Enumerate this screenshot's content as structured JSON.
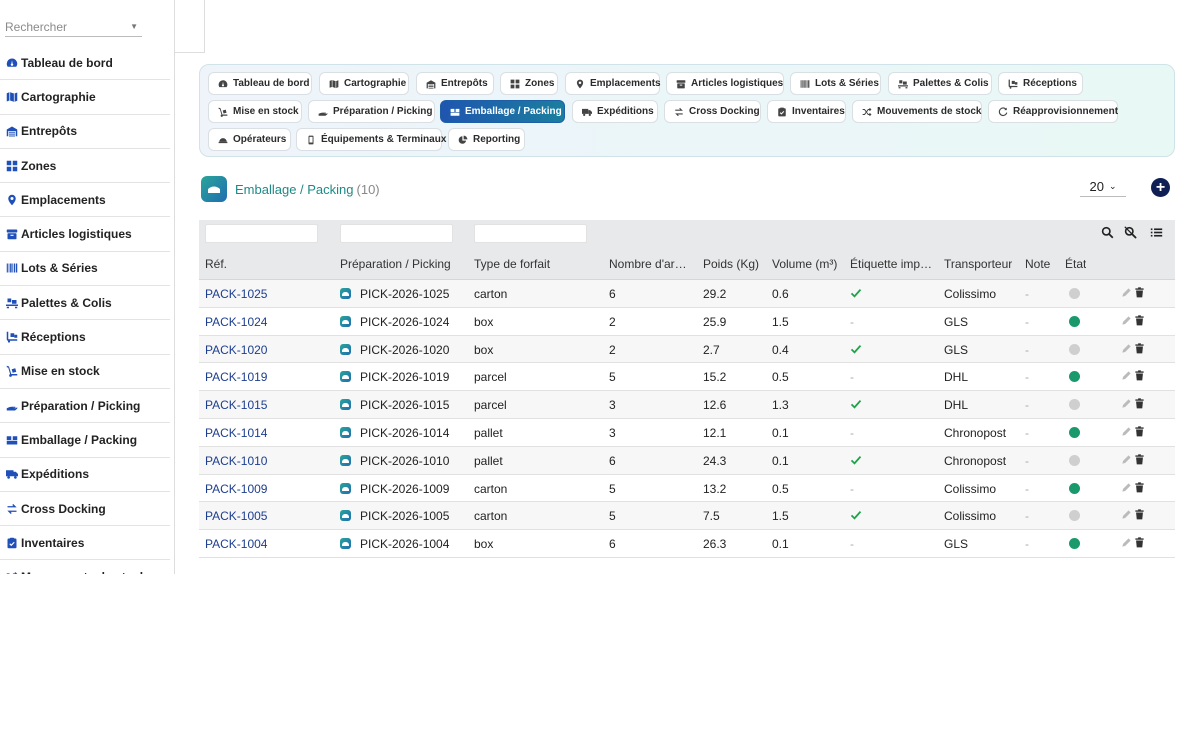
{
  "search": {
    "placeholder": "Rechercher"
  },
  "sidebar": {
    "items": [
      {
        "label": "Tableau de bord",
        "icon": "dashboard-icon"
      },
      {
        "label": "Cartographie",
        "icon": "map-icon"
      },
      {
        "label": "Entrepôts",
        "icon": "warehouse-icon"
      },
      {
        "label": "Zones",
        "icon": "grid-icon"
      },
      {
        "label": "Emplacements",
        "icon": "location-pin-icon"
      },
      {
        "label": "Articles logistiques",
        "icon": "box-icon"
      },
      {
        "label": "Lots & Séries",
        "icon": "barcode-icon"
      },
      {
        "label": "Palettes & Colis",
        "icon": "pallet-icon"
      },
      {
        "label": "Réceptions",
        "icon": "truck-loading-icon"
      },
      {
        "label": "Mise en stock",
        "icon": "dolly-icon"
      },
      {
        "label": "Préparation / Picking",
        "icon": "hand-icon"
      },
      {
        "label": "Emballage / Packing",
        "icon": "boxes-icon"
      },
      {
        "label": "Expéditions",
        "icon": "truck-icon"
      },
      {
        "label": "Cross Docking",
        "icon": "exchange-icon"
      },
      {
        "label": "Inventaires",
        "icon": "clipboard-check-icon"
      },
      {
        "label": "Mouvements de stock",
        "icon": "shuffle-icon"
      }
    ]
  },
  "tabs": {
    "active_index": 11,
    "items": [
      {
        "label": "Tableau de bord"
      },
      {
        "label": "Cartographie"
      },
      {
        "label": "Entrepôts"
      },
      {
        "label": "Zones"
      },
      {
        "label": "Emplacements"
      },
      {
        "label": "Articles logistiques"
      },
      {
        "label": "Lots & Séries"
      },
      {
        "label": "Palettes & Colis"
      },
      {
        "label": "Réceptions"
      },
      {
        "label": "Mise en stock"
      },
      {
        "label": "Préparation / Picking"
      },
      {
        "label": "Emballage / Packing"
      },
      {
        "label": "Expéditions"
      },
      {
        "label": "Cross Docking"
      },
      {
        "label": "Inventaires"
      },
      {
        "label": "Mouvements de stock"
      },
      {
        "label": "Réapprovisionnement"
      },
      {
        "label": "Opérateurs"
      },
      {
        "label": "Équipements & Terminaux"
      },
      {
        "label": "Reporting"
      }
    ]
  },
  "page": {
    "title": "Emballage / Packing",
    "count": "(10)",
    "per_page": "20"
  },
  "table": {
    "headers": [
      "Réf.",
      "Préparation / Picking",
      "Type de forfait",
      "Nombre d'arti...",
      "Poids (Kg)",
      "Volume (m³)",
      "Étiquette impri...",
      "Transporteur",
      "Note",
      "État"
    ],
    "rows": [
      {
        "ref": "PACK-1025",
        "picking": "PICK-2026-1025",
        "type": "carton",
        "nb": "6",
        "poids": "29.2",
        "volume": "0.6",
        "label_printed": true,
        "carrier": "Colissimo",
        "note": "-",
        "state": "inactive"
      },
      {
        "ref": "PACK-1024",
        "picking": "PICK-2026-1024",
        "type": "box",
        "nb": "2",
        "poids": "25.9",
        "volume": "1.5",
        "label_printed": false,
        "carrier": "GLS",
        "note": "-",
        "state": "active"
      },
      {
        "ref": "PACK-1020",
        "picking": "PICK-2026-1020",
        "type": "box",
        "nb": "2",
        "poids": "2.7",
        "volume": "0.4",
        "label_printed": true,
        "carrier": "GLS",
        "note": "-",
        "state": "inactive"
      },
      {
        "ref": "PACK-1019",
        "picking": "PICK-2026-1019",
        "type": "parcel",
        "nb": "5",
        "poids": "15.2",
        "volume": "0.5",
        "label_printed": false,
        "carrier": "DHL",
        "note": "-",
        "state": "active"
      },
      {
        "ref": "PACK-1015",
        "picking": "PICK-2026-1015",
        "type": "parcel",
        "nb": "3",
        "poids": "12.6",
        "volume": "1.3",
        "label_printed": true,
        "carrier": "DHL",
        "note": "-",
        "state": "inactive"
      },
      {
        "ref": "PACK-1014",
        "picking": "PICK-2026-1014",
        "type": "pallet",
        "nb": "3",
        "poids": "12.1",
        "volume": "0.1",
        "label_printed": false,
        "carrier": "Chronopost",
        "note": "-",
        "state": "active"
      },
      {
        "ref": "PACK-1010",
        "picking": "PICK-2026-1010",
        "type": "pallet",
        "nb": "6",
        "poids": "24.3",
        "volume": "0.1",
        "label_printed": true,
        "carrier": "Chronopost",
        "note": "-",
        "state": "inactive"
      },
      {
        "ref": "PACK-1009",
        "picking": "PICK-2026-1009",
        "type": "carton",
        "nb": "5",
        "poids": "13.2",
        "volume": "0.5",
        "label_printed": false,
        "carrier": "Colissimo",
        "note": "-",
        "state": "active"
      },
      {
        "ref": "PACK-1005",
        "picking": "PICK-2026-1005",
        "type": "carton",
        "nb": "5",
        "poids": "7.5",
        "volume": "1.5",
        "label_printed": true,
        "carrier": "Colissimo",
        "note": "-",
        "state": "inactive"
      },
      {
        "ref": "PACK-1004",
        "picking": "PICK-2026-1004",
        "type": "box",
        "nb": "6",
        "poids": "26.3",
        "volume": "0.1",
        "label_printed": false,
        "carrier": "GLS",
        "note": "-",
        "state": "active"
      }
    ],
    "empty_label_text": "-"
  },
  "colors": {
    "accent_blue": "#1f4fb8",
    "teal": "#1c8a86",
    "state_active": "#1a9a6c",
    "state_inactive": "#cfcfcf",
    "check_green": "#1ea24a",
    "add_button": "#0f1f55"
  }
}
